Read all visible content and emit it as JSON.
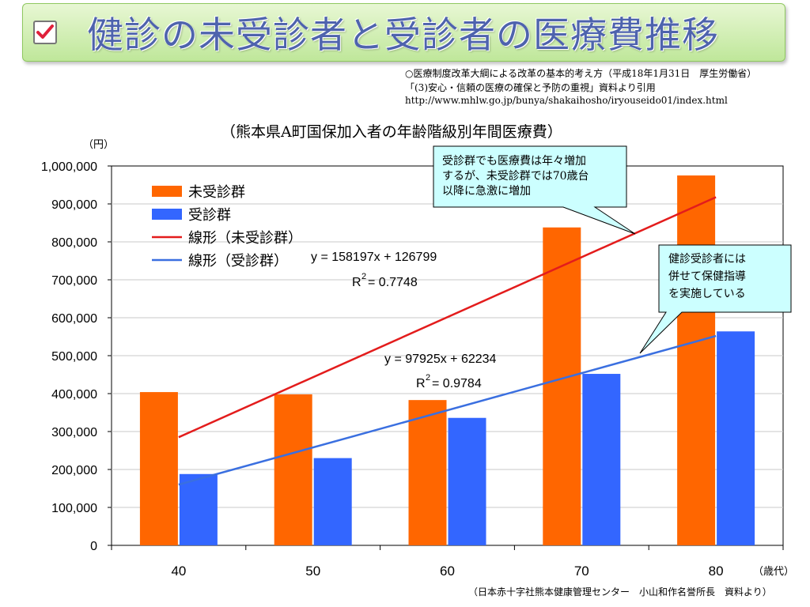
{
  "header": {
    "title": "健診の未受診者と受診者の医療費推移"
  },
  "source_lines": [
    "○医療制度改革大綱による改革の基本的考え方（平成18年1月31日　厚生労働省）",
    "「(3)安心・信頼の医療の確保と予防の重視」資料より引用",
    "http://www.mhlw.go.jp/bunya/shakaihosho/iryouseido01/index.html"
  ],
  "units": {
    "y": "（円）",
    "x": "（歳代）"
  },
  "credit": "（日本赤十字社熊本健康管理センター　小山和作名誉所長　資料より）",
  "chart_data": {
    "type": "bar",
    "title": "（熊本県A町国保加入者の年齢階級別年間医療費）",
    "categories": [
      "40",
      "50",
      "60",
      "70",
      "80"
    ],
    "ylim": [
      0,
      1000000
    ],
    "yticks": [
      0,
      100000,
      200000,
      300000,
      400000,
      500000,
      600000,
      700000,
      800000,
      900000,
      1000000
    ],
    "ytick_labels": [
      "0",
      "100,000",
      "200,000",
      "300,000",
      "400,000",
      "500,000",
      "600,000",
      "700,000",
      "800,000",
      "900,000",
      "1,000,000"
    ],
    "grid": true,
    "legend_position": "top-left",
    "series": [
      {
        "name": "未受診群",
        "color": "#ff6600",
        "values": [
          404000,
          398000,
          383000,
          838000,
          975000
        ]
      },
      {
        "name": "受診群",
        "color": "#3366ff",
        "values": [
          188000,
          230000,
          336000,
          452000,
          564000
        ]
      }
    ],
    "trendlines": [
      {
        "name": "線形（未受診群）",
        "color": "#e31c1c",
        "slope": 158197,
        "intercept": 126799,
        "equation": "y = 158197x + 126799",
        "r2_label": "R",
        "r2_value": " = 0.7748"
      },
      {
        "name": "線形（受診群）",
        "color": "#3a6fe0",
        "slope": 97925,
        "intercept": 62234,
        "equation": "y = 97925x + 62234",
        "r2_label": "R",
        "r2_value": " = 0.9784"
      }
    ],
    "annotations": [
      {
        "lines": [
          "受診群でも医療費は年々増加",
          "するが、未受診群では70歳台",
          "以降に急激に増加"
        ]
      },
      {
        "lines": [
          "健診受診者には",
          "併せて保健指導",
          "を実施している"
        ]
      }
    ]
  }
}
